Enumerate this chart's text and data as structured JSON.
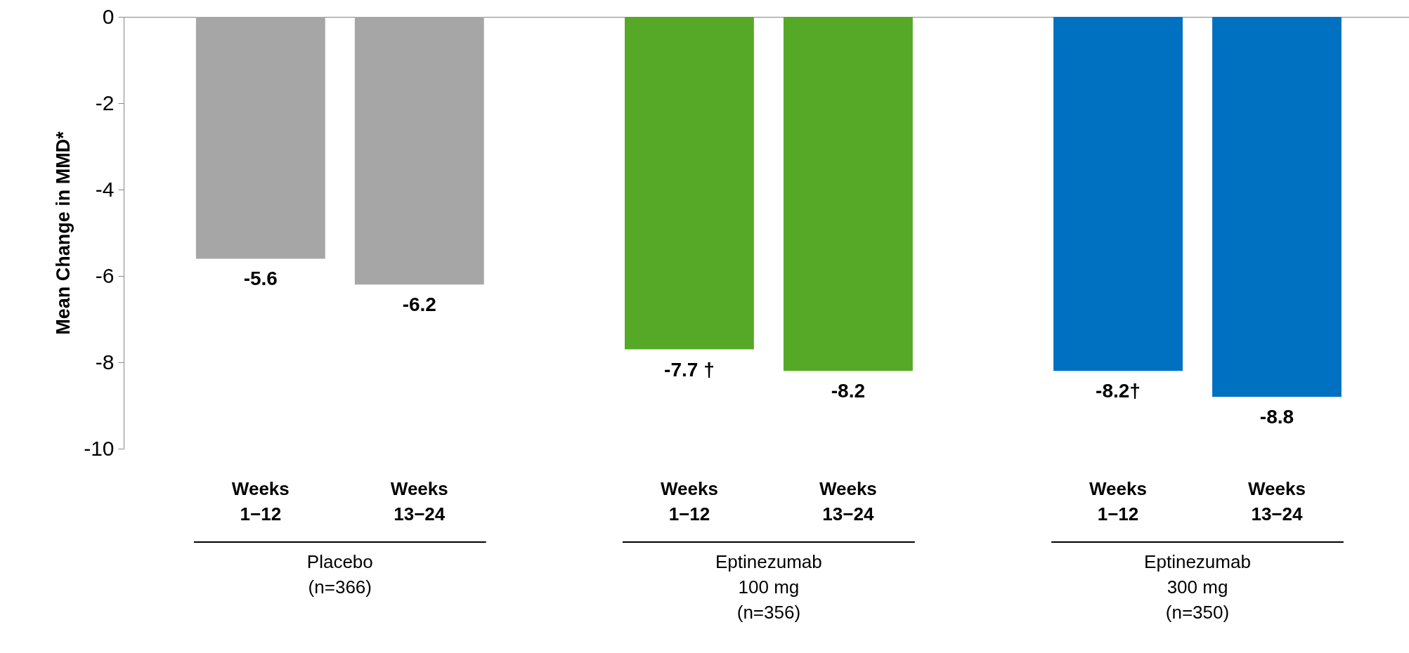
{
  "chart_data": {
    "type": "bar",
    "ylabel": "Mean Change in MMD*",
    "categories": [
      "Weeks\n1−12",
      "Weeks\n13−24",
      "Weeks\n1−12",
      "Weeks\n13−24",
      "Weeks\n1−12",
      "Weeks\n13−24"
    ],
    "values": [
      -5.6,
      -6.2,
      -7.7,
      -8.2,
      -8.2,
      -8.8
    ],
    "colors": [
      "#a6a6a6",
      "#a6a6a6",
      "#55a927",
      "#55a927",
      "#0070c0",
      "#0070c0"
    ],
    "value_labels": [
      "-5.6",
      "-6.2",
      "-7.7 †",
      "-8.2",
      "-8.2†",
      "-8.8"
    ],
    "annotations": [
      "Placebo\n(n=366)",
      "Eptinezumab\n100 mg\n(n=356)",
      "Eptinezumab\n300 mg\n(n=350)"
    ],
    "ylim": [
      -10,
      0
    ],
    "yticks": [
      -10,
      -8,
      -6,
      -4,
      -2,
      0
    ],
    "grid": false
  }
}
